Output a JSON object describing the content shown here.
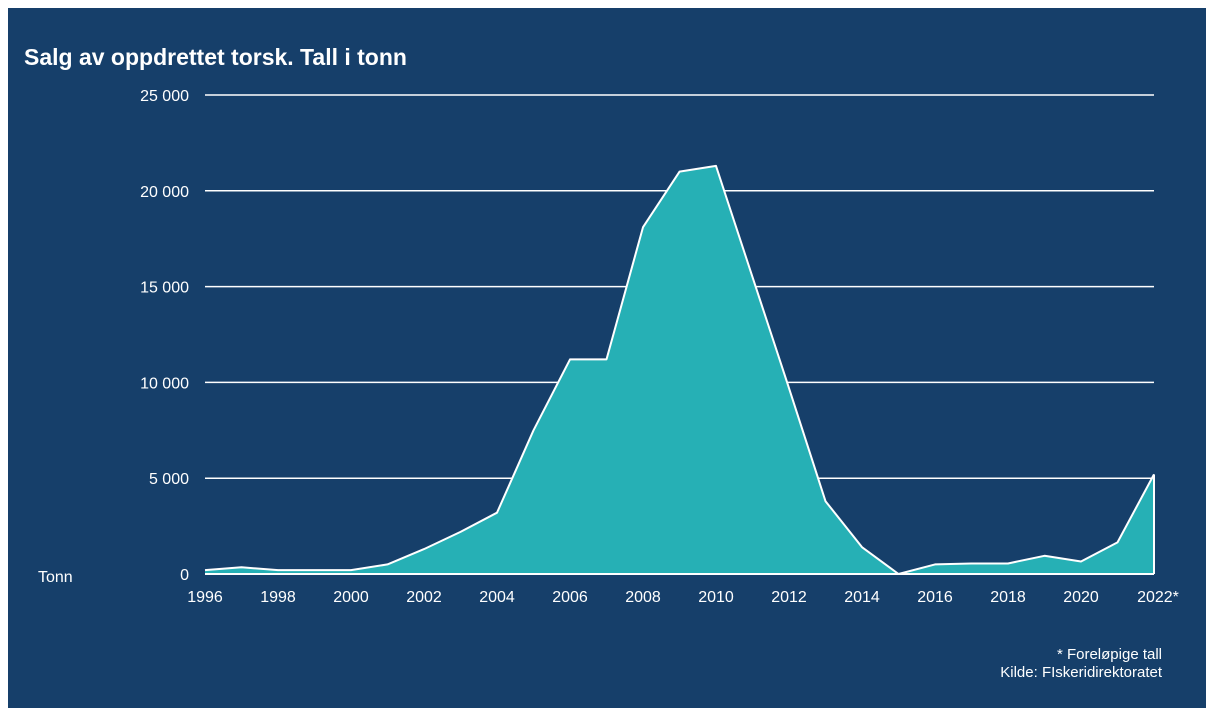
{
  "chart_data": {
    "type": "area",
    "title": "Salg av oppdrettet torsk. Tall i tonn",
    "ylabel": "Tonn",
    "xlabel": "",
    "x": [
      1996,
      1997,
      1998,
      1999,
      2000,
      2001,
      2002,
      2003,
      2004,
      2005,
      2006,
      2007,
      2008,
      2009,
      2010,
      2011,
      2012,
      2013,
      2014,
      2015,
      2016,
      2017,
      2018,
      2019,
      2020,
      2021,
      2022
    ],
    "values": [
      200,
      350,
      200,
      200,
      200,
      500,
      1300,
      2200,
      3200,
      7500,
      11200,
      11200,
      18100,
      21000,
      21300,
      15500,
      9700,
      3800,
      1400,
      0,
      500,
      550,
      550,
      950,
      650,
      1650,
      5200
    ],
    "ylim": [
      0,
      25000
    ],
    "yticks": [
      0,
      5000,
      10000,
      15000,
      20000,
      25000
    ],
    "ytick_labels": [
      "0",
      "5 000",
      "10 000",
      "15 000",
      "20 000",
      "25 000"
    ],
    "xtick_labels": [
      "1996",
      "1998",
      "2000",
      "2002",
      "2004",
      "2006",
      "2008",
      "2010",
      "2012",
      "2014",
      "2016",
      "2018",
      "2020",
      "2022*"
    ],
    "grid": true,
    "colors": {
      "background": "#163f6a",
      "fill": "#26b0b5",
      "line": "#ffffff",
      "grid": "#ffffff",
      "text": "#ffffff"
    }
  },
  "footnote": {
    "line1": "* Foreløpige tall",
    "line2": "Kilde: FIskeridirektoratet"
  }
}
